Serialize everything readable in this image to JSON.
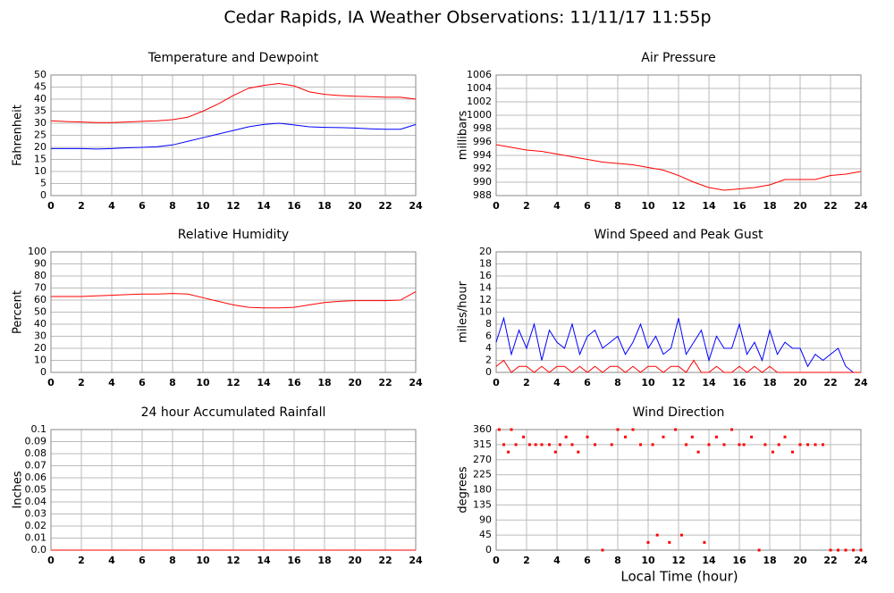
{
  "title": "Cedar Rapids, IA Weather Observations: 11/11/17 11:55p",
  "x_label": "Local Time (hour)",
  "chart_data": [
    {
      "type": "line",
      "title": "Temperature and Dewpoint",
      "y_label": "Fahrenheit",
      "grid": true,
      "x": [
        0,
        1,
        2,
        3,
        4,
        5,
        6,
        7,
        8,
        9,
        10,
        11,
        12,
        13,
        14,
        15,
        16,
        17,
        18,
        19,
        20,
        21,
        22,
        23,
        24
      ],
      "series": [
        {
          "color": "#ff0000",
          "values": [
            31,
            30.7,
            30.5,
            30.3,
            30.3,
            30.5,
            30.8,
            31,
            31.5,
            32.5,
            35,
            38,
            41.5,
            44.5,
            45.7,
            46.5,
            45.5,
            43,
            42,
            41.5,
            41.2,
            41,
            40.8,
            40.8,
            40
          ]
        },
        {
          "color": "#0000ff",
          "values": [
            19.5,
            19.5,
            19.5,
            19.3,
            19.5,
            19.8,
            20,
            20.3,
            21,
            22.5,
            24,
            25.5,
            27,
            28.5,
            29.5,
            30,
            29.3,
            28.5,
            28.3,
            28.2,
            28,
            27.7,
            27.5,
            27.5,
            29.5
          ]
        }
      ],
      "xlim": [
        0,
        24
      ],
      "xticks": [
        0,
        2,
        4,
        6,
        8,
        10,
        12,
        14,
        16,
        18,
        20,
        22,
        24
      ],
      "ylim": [
        0,
        50
      ],
      "yticks": [
        0,
        5,
        10,
        15,
        20,
        25,
        30,
        35,
        40,
        45,
        50
      ]
    },
    {
      "type": "line",
      "title": "Air Pressure",
      "y_label": "millibars",
      "grid": true,
      "x": [
        0,
        1,
        2,
        3,
        4,
        5,
        6,
        7,
        8,
        9,
        10,
        11,
        12,
        13,
        14,
        15,
        16,
        17,
        18,
        19,
        20,
        21,
        22,
        23,
        24
      ],
      "series": [
        {
          "color": "#ff0000",
          "values": [
            995.6,
            995.2,
            994.8,
            994.6,
            994.2,
            993.8,
            993.4,
            993,
            992.8,
            992.6,
            992.2,
            991.8,
            991,
            990,
            989.2,
            988.8,
            989,
            989.2,
            989.6,
            990.4,
            990.4,
            990.4,
            991,
            991.2,
            991.6
          ]
        }
      ],
      "xlim": [
        0,
        24
      ],
      "xticks": [
        0,
        2,
        4,
        6,
        8,
        10,
        12,
        14,
        16,
        18,
        20,
        22,
        24
      ],
      "ylim": [
        988,
        1006
      ],
      "yticks": [
        988,
        990,
        992,
        994,
        996,
        998,
        1000,
        1002,
        1004,
        1006
      ]
    },
    {
      "type": "line",
      "title": "Relative Humidity",
      "y_label": "Percent",
      "grid": true,
      "x": [
        0,
        1,
        2,
        3,
        4,
        5,
        6,
        7,
        8,
        9,
        10,
        11,
        12,
        13,
        14,
        15,
        16,
        17,
        18,
        19,
        20,
        21,
        22,
        23,
        24
      ],
      "series": [
        {
          "color": "#ff0000",
          "values": [
            63,
            63,
            63,
            63.5,
            64,
            64.5,
            65,
            65,
            65.5,
            65,
            62,
            59,
            56,
            54,
            53.5,
            53.5,
            54,
            56,
            58,
            59,
            59.5,
            59.5,
            59.5,
            60,
            67
          ]
        }
      ],
      "xlim": [
        0,
        24
      ],
      "xticks": [
        0,
        2,
        4,
        6,
        8,
        10,
        12,
        14,
        16,
        18,
        20,
        22,
        24
      ],
      "ylim": [
        0,
        100
      ],
      "yticks": [
        0,
        10,
        20,
        30,
        40,
        50,
        60,
        70,
        80,
        90,
        100
      ]
    },
    {
      "type": "line",
      "title": "Wind Speed and Peak Gust",
      "y_label": "miles/hour",
      "grid": true,
      "x": [
        0,
        0.5,
        1,
        1.5,
        2,
        2.5,
        3,
        3.5,
        4,
        4.5,
        5,
        5.5,
        6,
        6.5,
        7,
        7.5,
        8,
        8.5,
        9,
        9.5,
        10,
        10.5,
        11,
        11.5,
        12,
        12.5,
        13,
        13.5,
        14,
        14.5,
        15,
        15.5,
        16,
        16.5,
        17,
        17.5,
        18,
        18.5,
        19,
        19.5,
        20,
        20.5,
        21,
        21.5,
        22,
        22.5,
        23,
        23.5,
        24
      ],
      "series": [
        {
          "color": "#0000ff",
          "values": [
            5,
            9,
            3,
            7,
            4,
            8,
            2,
            7,
            5,
            4,
            8,
            3,
            6,
            7,
            4,
            5,
            6,
            3,
            5,
            8,
            4,
            6,
            3,
            4,
            9,
            3,
            5,
            7,
            2,
            6,
            4,
            4,
            8,
            3,
            5,
            2,
            7,
            3,
            5,
            4,
            4,
            1,
            3,
            2,
            3,
            4,
            1,
            0,
            0
          ]
        },
        {
          "color": "#ff0000",
          "values": [
            1,
            2,
            0,
            1,
            1,
            0,
            1,
            0,
            1,
            1,
            0,
            1,
            0,
            1,
            0,
            1,
            1,
            0,
            1,
            0,
            1,
            1,
            0,
            1,
            1,
            0,
            2,
            0,
            0,
            1,
            0,
            0,
            1,
            0,
            1,
            0,
            1,
            0,
            0,
            0,
            0,
            0,
            0,
            0,
            0,
            0,
            0,
            0,
            0
          ]
        }
      ],
      "xlim": [
        0,
        24
      ],
      "xticks": [
        0,
        2,
        4,
        6,
        8,
        10,
        12,
        14,
        16,
        18,
        20,
        22,
        24
      ],
      "ylim": [
        0,
        20
      ],
      "yticks": [
        0,
        2,
        4,
        6,
        8,
        10,
        12,
        14,
        16,
        18,
        20
      ]
    },
    {
      "type": "line",
      "title": "24 hour Accumulated Rainfall",
      "y_label": "Inches",
      "grid": true,
      "x": [
        0,
        1,
        2,
        3,
        4,
        5,
        6,
        7,
        8,
        9,
        10,
        11,
        12,
        13,
        14,
        15,
        16,
        17,
        18,
        19,
        20,
        21,
        22,
        23,
        24
      ],
      "series": [
        {
          "color": "#ff0000",
          "values": [
            0,
            0,
            0,
            0,
            0,
            0,
            0,
            0,
            0,
            0,
            0,
            0,
            0,
            0,
            0,
            0,
            0,
            0,
            0,
            0,
            0,
            0,
            0,
            0,
            0
          ]
        }
      ],
      "xlim": [
        0,
        24
      ],
      "xticks": [
        0,
        2,
        4,
        6,
        8,
        10,
        12,
        14,
        16,
        18,
        20,
        22,
        24
      ],
      "ylim": [
        0,
        0.1
      ],
      "yticks": [
        {
          "value": 0,
          "label": "0.0"
        },
        0.01,
        0.02,
        0.03,
        0.04,
        0.05,
        0.06,
        0.07,
        0.08,
        0.09,
        0.1
      ]
    },
    {
      "type": "scatter",
      "title": "Wind Direction",
      "y_label": "degrees",
      "grid": true,
      "x": [
        0.2,
        0.5,
        0.8,
        1,
        1.3,
        1.8,
        2.2,
        2.6,
        3,
        3.5,
        3.9,
        4.2,
        4.6,
        5,
        5.4,
        6,
        6.5,
        7,
        7.6,
        8,
        8.5,
        9,
        9.5,
        10,
        10.3,
        10.6,
        11,
        11.4,
        11.8,
        12.2,
        12.5,
        12.9,
        13.3,
        13.7,
        14,
        14.5,
        15,
        15.5,
        16,
        16.3,
        16.8,
        17.3,
        17.7,
        18.2,
        18.6,
        19,
        19.5,
        20,
        20.5,
        21,
        21.5,
        22,
        22.5,
        23,
        23.5,
        24
      ],
      "series": [
        {
          "color": "#ff0000",
          "values": [
            360,
            315,
            293,
            360,
            315,
            338,
            315,
            315,
            315,
            315,
            293,
            315,
            338,
            315,
            293,
            338,
            315,
            0,
            315,
            360,
            338,
            360,
            315,
            23,
            315,
            45,
            338,
            23,
            360,
            45,
            315,
            338,
            293,
            23,
            315,
            338,
            315,
            360,
            315,
            315,
            338,
            0,
            315,
            293,
            315,
            338,
            293,
            315,
            315,
            315,
            315,
            0,
            0,
            0,
            0,
            0
          ]
        }
      ],
      "xlim": [
        0,
        24
      ],
      "xticks": [
        0,
        2,
        4,
        6,
        8,
        10,
        12,
        14,
        16,
        18,
        20,
        22,
        24
      ],
      "ylim": [
        0,
        360
      ],
      "yticks": [
        0,
        45,
        90,
        135,
        180,
        225,
        270,
        315,
        360
      ]
    }
  ]
}
